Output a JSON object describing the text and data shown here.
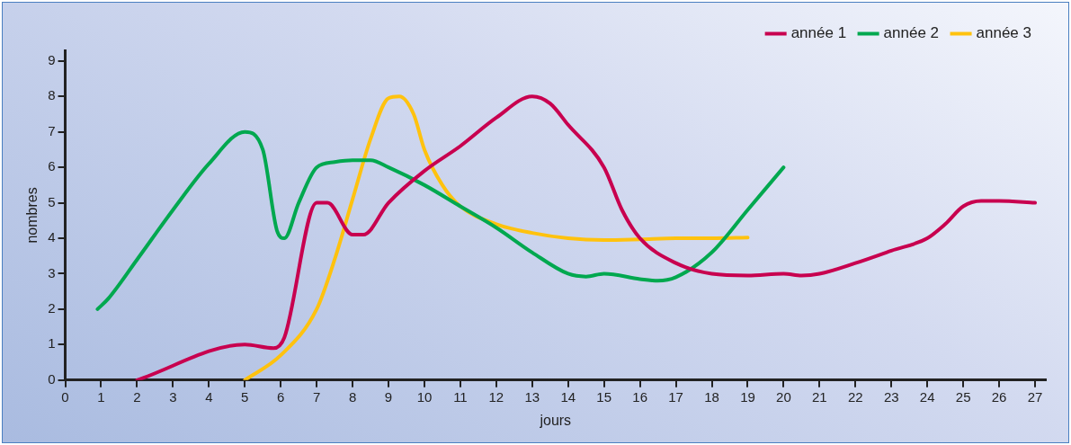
{
  "chart_data": {
    "type": "line",
    "xlabel": "jours",
    "ylabel": "nombres",
    "xlim": [
      0,
      27.3
    ],
    "xticks": [
      0,
      1,
      2,
      3,
      4,
      5,
      6,
      7,
      8,
      9,
      10,
      11,
      12,
      13,
      14,
      15,
      16,
      17,
      18,
      19,
      20,
      21,
      22,
      23,
      24,
      25,
      26,
      27
    ],
    "ylim": [
      0,
      9.3
    ],
    "yticks": [
      0,
      1,
      2,
      3,
      4,
      5,
      6,
      7,
      8,
      9
    ],
    "grid": false,
    "legend": "top right",
    "marker": "none",
    "line_style": "solid",
    "series": [
      {
        "name": "année 1",
        "color": "#c8004f",
        "x": [
          2,
          5,
          5.8,
          6.1,
          7,
          7.3,
          8,
          8.3,
          9,
          10,
          11,
          12,
          13,
          13.5,
          14,
          15,
          15.5,
          16,
          17,
          18,
          19,
          20,
          20.5,
          21,
          22,
          23,
          24,
          24.5,
          25,
          25.5,
          26,
          27
        ],
        "values": [
          0,
          1,
          0.9,
          1.2,
          5,
          5,
          4.1,
          4.1,
          5,
          5.9,
          6.6,
          7.4,
          8,
          7.8,
          7.2,
          6,
          4.8,
          4,
          3.3,
          3,
          2.95,
          3,
          2.95,
          3,
          3.3,
          3.65,
          4,
          4.4,
          4.9,
          5.05,
          5.05,
          5
        ]
      },
      {
        "name": "année 2",
        "color": "#00a84f",
        "x": [
          0.9,
          1.2,
          2,
          3,
          4,
          5,
          5.5,
          5.9,
          6.1,
          6.5,
          7,
          7.5,
          8,
          8.5,
          9,
          10,
          11,
          12,
          13,
          14,
          14.5,
          15,
          16,
          16.5,
          17,
          18,
          19,
          20
        ],
        "values": [
          2,
          2.3,
          3.4,
          4.8,
          6.1,
          7,
          6.5,
          4.2,
          4,
          5,
          6,
          6.15,
          6.2,
          6.2,
          6,
          5.5,
          4.9,
          4.3,
          3.6,
          3,
          2.92,
          3,
          2.85,
          2.8,
          2.9,
          3.6,
          4.8,
          6
        ]
      },
      {
        "name": "année 3",
        "color": "#ffc20e",
        "x": [
          5,
          6,
          7,
          7.5,
          8,
          8.5,
          9,
          9.3,
          9.7,
          10,
          10.5,
          11,
          12,
          13,
          14,
          15,
          16,
          17,
          18,
          19
        ],
        "values": [
          0,
          0.7,
          2,
          3.4,
          5.1,
          6.8,
          7.95,
          8,
          7.5,
          6.5,
          5.5,
          4.9,
          4.4,
          4.15,
          4,
          3.95,
          3.97,
          4,
          4,
          4.02
        ]
      }
    ]
  }
}
